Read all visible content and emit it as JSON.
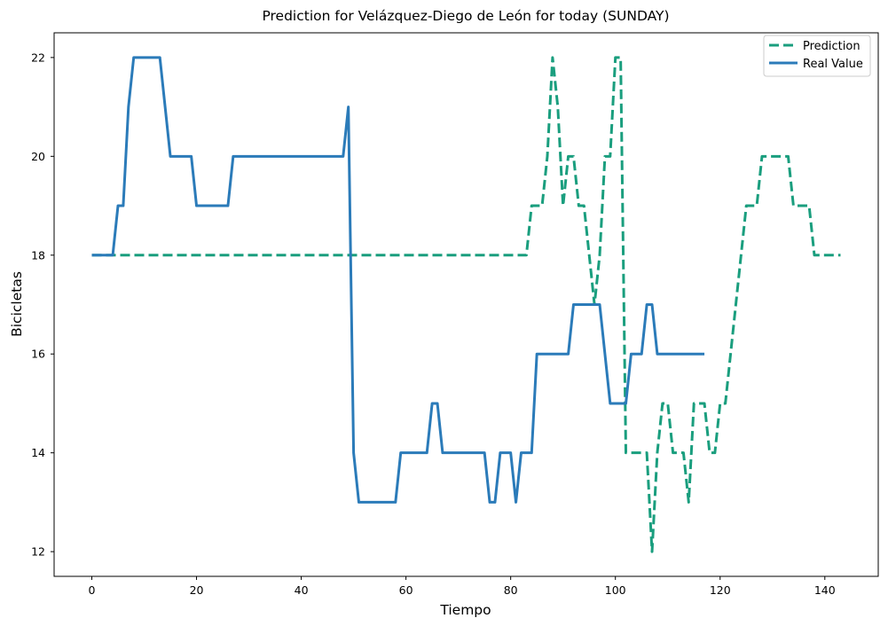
{
  "chart_data": {
    "type": "line",
    "title": "Prediction for Velázquez-Diego de León for today (SUNDAY)",
    "xlabel": "Tiempo",
    "ylabel": "Bicicletas",
    "xlim": [
      -7.2,
      150.2
    ],
    "ylim": [
      11.5,
      22.5
    ],
    "xticks": [
      0,
      20,
      40,
      60,
      80,
      100,
      120,
      140
    ],
    "yticks": [
      12,
      14,
      16,
      18,
      20,
      22
    ],
    "grid": false,
    "legend_position": "top-right",
    "series": [
      {
        "name": "Prediction",
        "color": "#1a9e7e",
        "style": "dashed",
        "points": [
          [
            0,
            18
          ],
          [
            83,
            18
          ],
          [
            84,
            19
          ],
          [
            86,
            19
          ],
          [
            87,
            20
          ],
          [
            88,
            22
          ],
          [
            89,
            21
          ],
          [
            90,
            19
          ],
          [
            91,
            20
          ],
          [
            92,
            20
          ],
          [
            93,
            19
          ],
          [
            94,
            19
          ],
          [
            95,
            18
          ],
          [
            96,
            17
          ],
          [
            97,
            18
          ],
          [
            98,
            20
          ],
          [
            99,
            20
          ],
          [
            100,
            22
          ],
          [
            101,
            22
          ],
          [
            102,
            14
          ],
          [
            106,
            14
          ],
          [
            107,
            12
          ],
          [
            108,
            14
          ],
          [
            109,
            15
          ],
          [
            110,
            15
          ],
          [
            111,
            14
          ],
          [
            113,
            14
          ],
          [
            114,
            13
          ],
          [
            115,
            15
          ],
          [
            116,
            15
          ],
          [
            117,
            15
          ],
          [
            118,
            14
          ],
          [
            119,
            14
          ],
          [
            120,
            15
          ],
          [
            121,
            15
          ],
          [
            122,
            16
          ],
          [
            123,
            17
          ],
          [
            124,
            18
          ],
          [
            125,
            19
          ],
          [
            127,
            19
          ],
          [
            128,
            20
          ],
          [
            133,
            20
          ],
          [
            134,
            19
          ],
          [
            137,
            19
          ],
          [
            138,
            18
          ],
          [
            143,
            18
          ]
        ]
      },
      {
        "name": "Real Value",
        "color": "#2b7bb9",
        "style": "solid",
        "points": [
          [
            0,
            18
          ],
          [
            4,
            18
          ],
          [
            5,
            19
          ],
          [
            6,
            19
          ],
          [
            7,
            21
          ],
          [
            8,
            22
          ],
          [
            13,
            22
          ],
          [
            14,
            21
          ],
          [
            15,
            20
          ],
          [
            19,
            20
          ],
          [
            20,
            19
          ],
          [
            26,
            19
          ],
          [
            27,
            20
          ],
          [
            48,
            20
          ],
          [
            49,
            21
          ],
          [
            50,
            14
          ],
          [
            51,
            13
          ],
          [
            58,
            13
          ],
          [
            59,
            14
          ],
          [
            64,
            14
          ],
          [
            65,
            15
          ],
          [
            66,
            15
          ],
          [
            67,
            14
          ],
          [
            75,
            14
          ],
          [
            76,
            13
          ],
          [
            77,
            13
          ],
          [
            78,
            14
          ],
          [
            80,
            14
          ],
          [
            81,
            13
          ],
          [
            82,
            14
          ],
          [
            84,
            14
          ],
          [
            85,
            16
          ],
          [
            91,
            16
          ],
          [
            92,
            17
          ],
          [
            97,
            17
          ],
          [
            98,
            16
          ],
          [
            99,
            15
          ],
          [
            101,
            15
          ],
          [
            102,
            15
          ],
          [
            103,
            16
          ],
          [
            105,
            16
          ],
          [
            106,
            17
          ],
          [
            107,
            17
          ],
          [
            108,
            16
          ],
          [
            117,
            16
          ]
        ]
      }
    ]
  }
}
